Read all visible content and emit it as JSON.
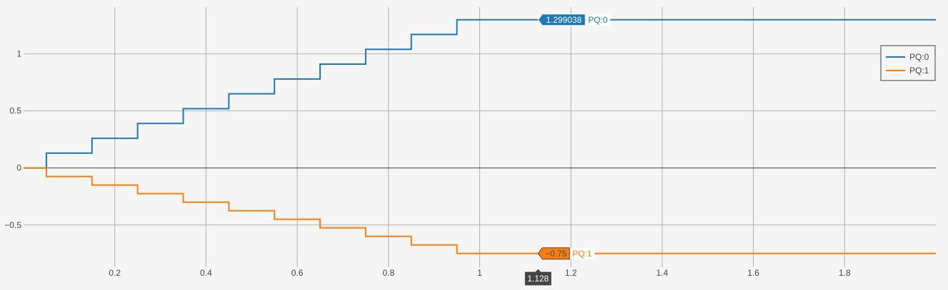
{
  "chart_data": {
    "type": "line",
    "line_shape": "step",
    "x_ticks": [
      "0.2",
      "0.4",
      "0.6",
      "0.8",
      "1",
      "1.2",
      "1.4",
      "1.6",
      "1.8"
    ],
    "y_ticks": [
      "1",
      "0.5",
      "0",
      "−0.5"
    ],
    "xlim": [
      0,
      2
    ],
    "ylim": [
      -0.87,
      1.41
    ],
    "grid": true,
    "zero_line": true,
    "legend_position": "top-right",
    "series": [
      {
        "name": "PQ:0",
        "color": "#1f77b4",
        "x": [
          0,
          0.1,
          0.2,
          0.3,
          0.4,
          0.5,
          0.6,
          0.7,
          0.8,
          0.9,
          1.0,
          2.0
        ],
        "y": [
          0,
          0.13,
          0.26,
          0.39,
          0.52,
          0.65,
          0.78,
          0.91,
          1.04,
          1.17,
          1.299038,
          1.299038
        ]
      },
      {
        "name": "PQ:1",
        "color": "#ff7f0e",
        "x": [
          0,
          0.1,
          0.2,
          0.3,
          0.4,
          0.5,
          0.6,
          0.7,
          0.8,
          0.9,
          1.0,
          2.0
        ],
        "y": [
          0,
          -0.075,
          -0.15,
          -0.225,
          -0.3,
          -0.375,
          -0.45,
          -0.525,
          -0.6,
          -0.675,
          -0.75,
          -0.75
        ]
      }
    ],
    "hover": {
      "x_label": "1.128",
      "x": 1.128,
      "items": [
        {
          "value": "1.299038",
          "name": "PQ:0",
          "y": 1.299038,
          "color": "#1f77b4"
        },
        {
          "value": "−0.75",
          "name": "PQ:1",
          "y": -0.75,
          "color": "#ff7f0e"
        }
      ]
    }
  }
}
